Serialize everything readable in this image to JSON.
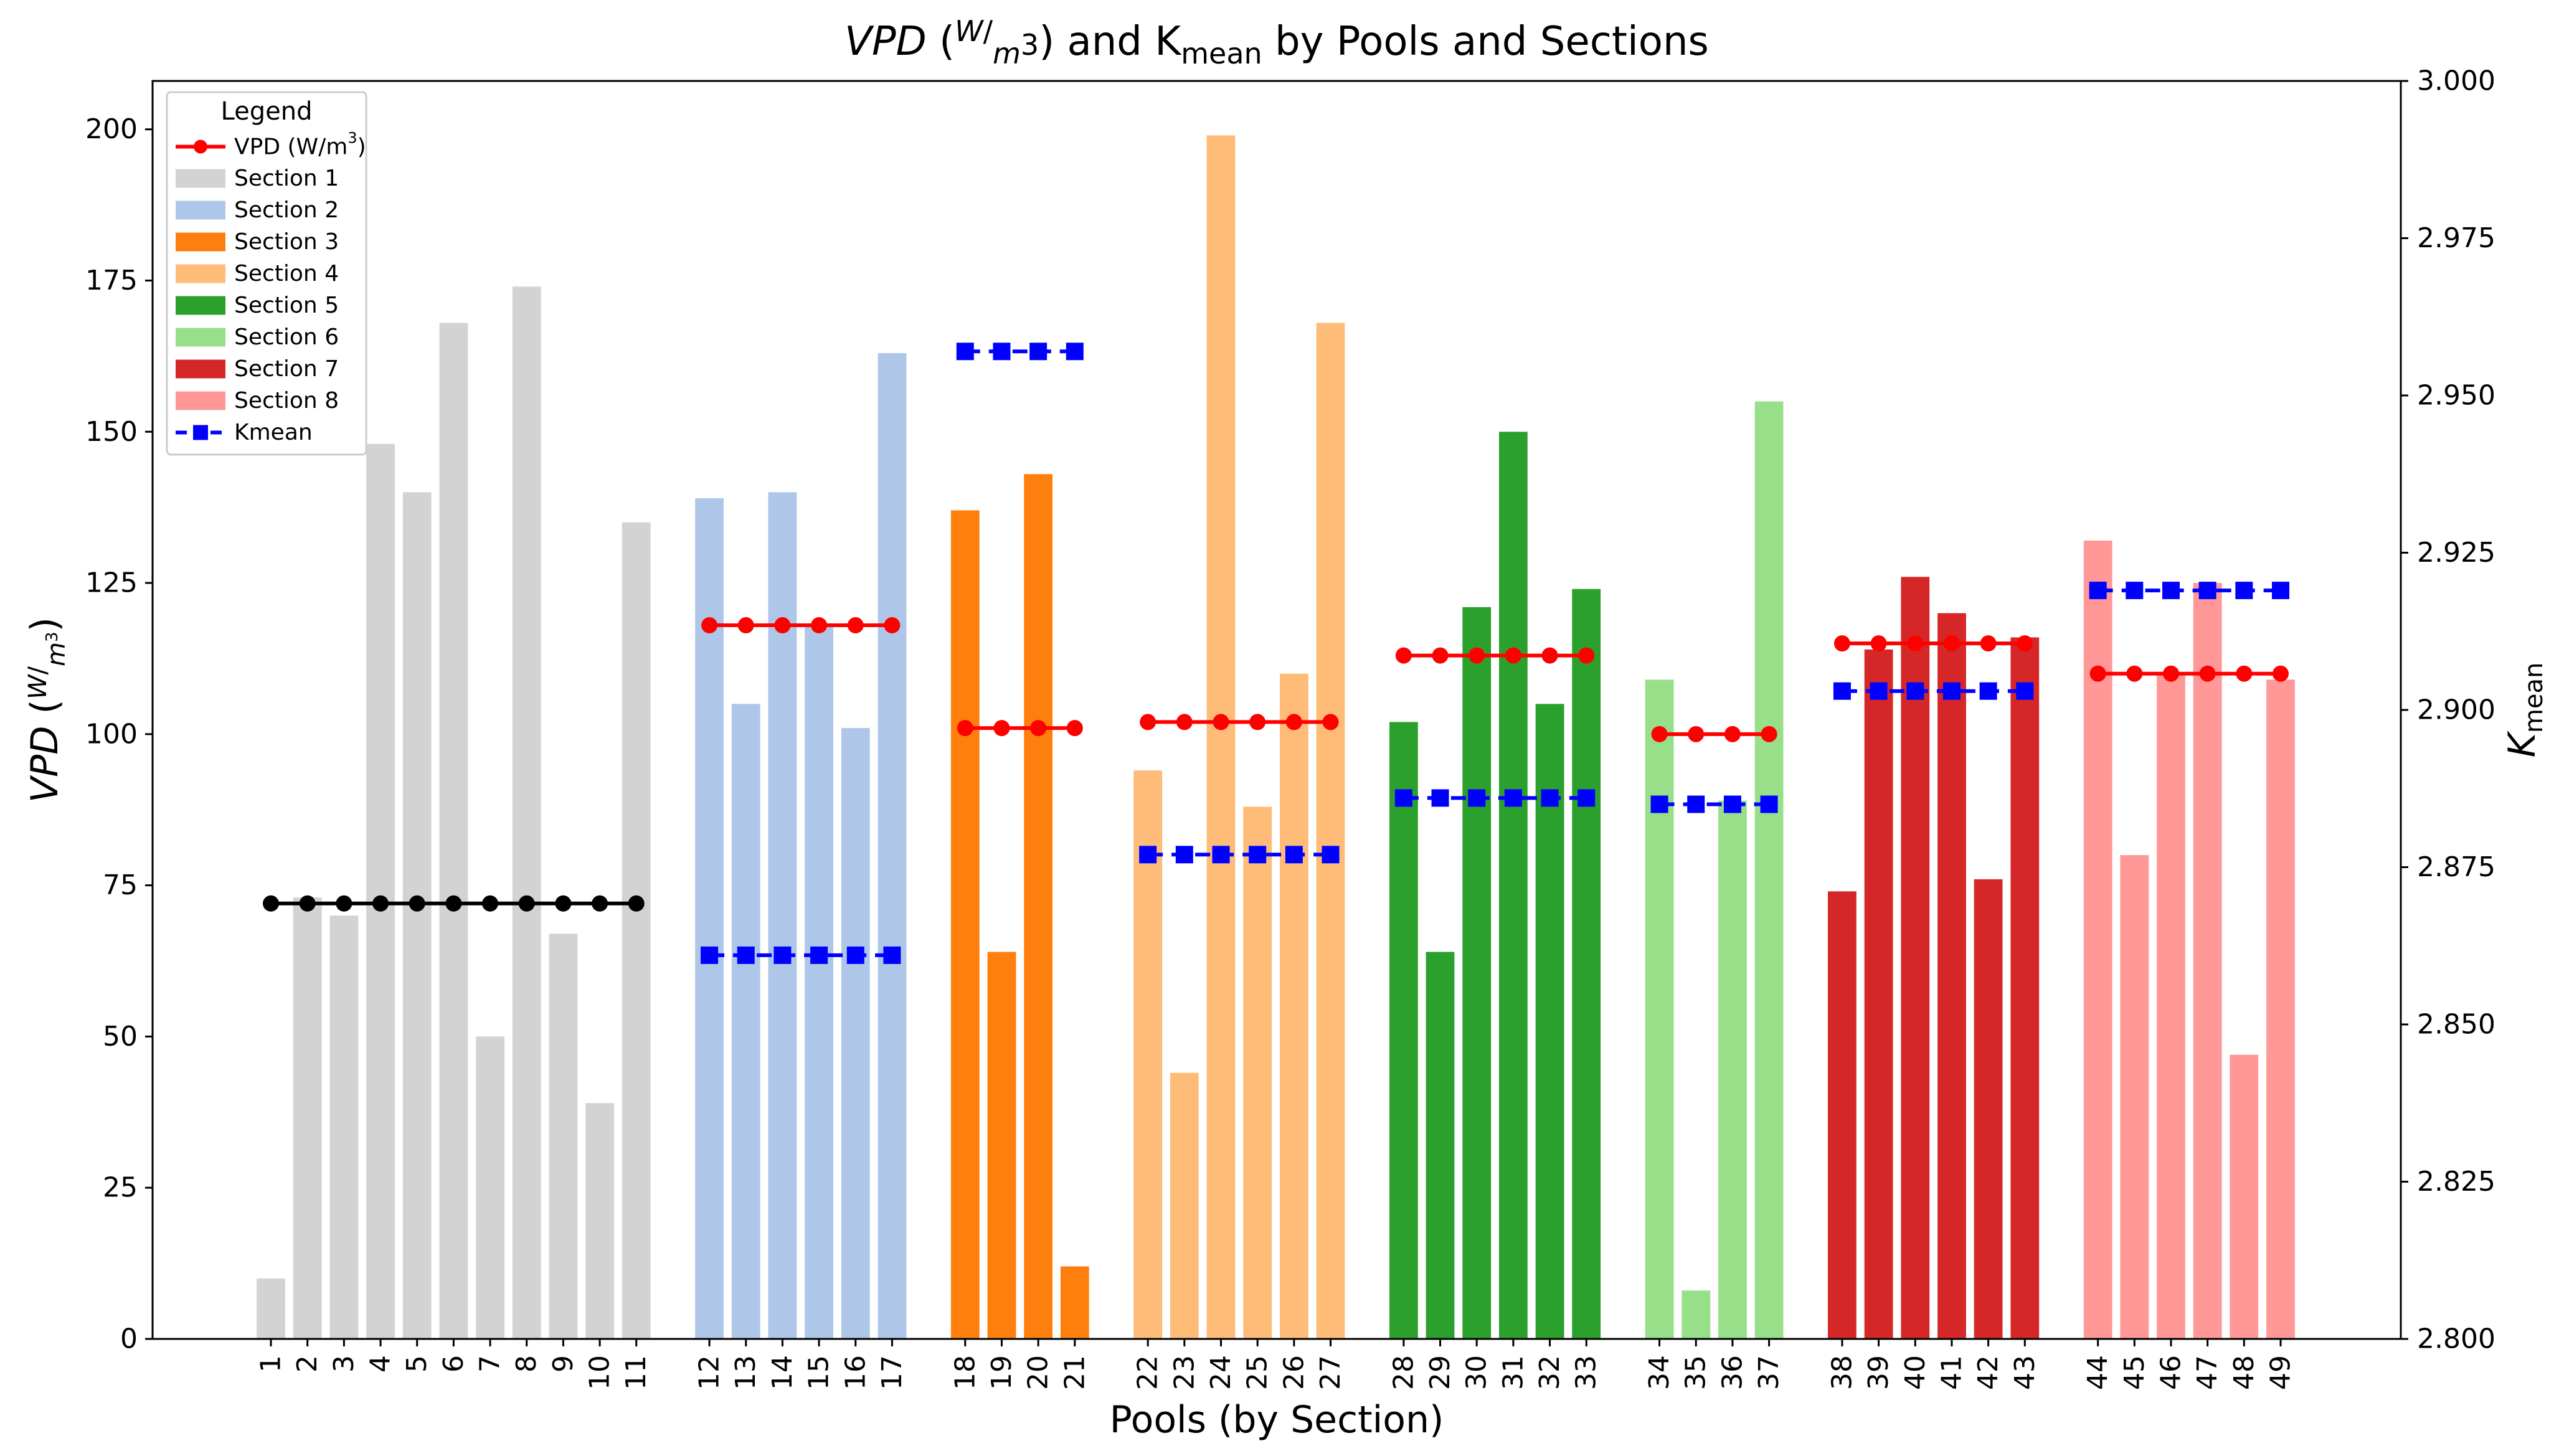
{
  "chart_data": {
    "type": "bar",
    "title": {
      "prefix": "VPD",
      "frac_num": "W",
      "frac_den": "m",
      "frac_den_sup": "3",
      "middle": " and K",
      "middle_sub": "mean",
      "suffix": " by Pools and Sections"
    },
    "xlabel": "Pools (by Section)",
    "ylabel": {
      "prefix": "VPD",
      "frac_num": "W",
      "frac_den": "m",
      "frac_den_sup": "3"
    },
    "y2label": {
      "main": "K",
      "sub": "mean"
    },
    "ylim": [
      0,
      208
    ],
    "y2lim": [
      2.8,
      3.0
    ],
    "yticks": [
      0,
      25,
      50,
      75,
      100,
      125,
      150,
      175,
      200
    ],
    "y2ticks": [
      "2.800",
      "2.825",
      "2.850",
      "2.875",
      "2.900",
      "2.925",
      "2.950",
      "2.975",
      "3.000"
    ],
    "legend": {
      "title": "Legend",
      "vpd_label": "VPD (W/m",
      "vpd_label_sup": "3",
      "vpd_label_end": ")",
      "kmean_label": "Kmean"
    },
    "sections": [
      {
        "name": "Section 1",
        "color": "#d3d3d3",
        "pools": [
          "1",
          "2",
          "3",
          "4",
          "5",
          "6",
          "7",
          "8",
          "9",
          "10",
          "11"
        ],
        "values": [
          10,
          73,
          70,
          148,
          140,
          168,
          50,
          174,
          67,
          39,
          135
        ],
        "vpd": 72,
        "vpd_color": "#000000",
        "kmean": null
      },
      {
        "name": "Section 2",
        "color": "#aec7e8",
        "pools": [
          "12",
          "13",
          "14",
          "15",
          "16",
          "17"
        ],
        "values": [
          139,
          105,
          140,
          118,
          101,
          163
        ],
        "vpd": 118,
        "vpd_color": "#ff0000",
        "kmean": 2.861
      },
      {
        "name": "Section 3",
        "color": "#ff7f0e",
        "pools": [
          "18",
          "19",
          "20",
          "21"
        ],
        "values": [
          137,
          64,
          143,
          12
        ],
        "vpd": 101,
        "vpd_color": "#ff0000",
        "kmean": 2.957
      },
      {
        "name": "Section 4",
        "color": "#ffbb78",
        "pools": [
          "22",
          "23",
          "24",
          "25",
          "26",
          "27"
        ],
        "values": [
          94,
          44,
          199,
          88,
          110,
          168
        ],
        "vpd": 102,
        "vpd_color": "#ff0000",
        "kmean": 2.877
      },
      {
        "name": "Section 5",
        "color": "#2ca02c",
        "pools": [
          "28",
          "29",
          "30",
          "31",
          "32",
          "33"
        ],
        "values": [
          102,
          64,
          121,
          150,
          105,
          124
        ],
        "vpd": 113,
        "vpd_color": "#ff0000",
        "kmean": 2.886
      },
      {
        "name": "Section 6",
        "color": "#98df8a",
        "pools": [
          "34",
          "35",
          "36",
          "37"
        ],
        "values": [
          109,
          8,
          89,
          155
        ],
        "vpd": 100,
        "vpd_color": "#ff0000",
        "kmean": 2.885
      },
      {
        "name": "Section 7",
        "color": "#d62728",
        "pools": [
          "38",
          "39",
          "40",
          "41",
          "42",
          "43"
        ],
        "values": [
          74,
          114,
          126,
          120,
          76,
          116
        ],
        "vpd": 115,
        "vpd_color": "#ff0000",
        "kmean": 2.903
      },
      {
        "name": "Section 8",
        "color": "#ff9896",
        "pools": [
          "44",
          "45",
          "46",
          "47",
          "48",
          "49"
        ],
        "values": [
          132,
          80,
          110,
          125,
          47,
          109
        ],
        "vpd": 110,
        "vpd_color": "#ff0000",
        "kmean": 2.919
      }
    ],
    "vpd_marker_color": "#ff0000",
    "kmean_color": "#0000ff"
  }
}
